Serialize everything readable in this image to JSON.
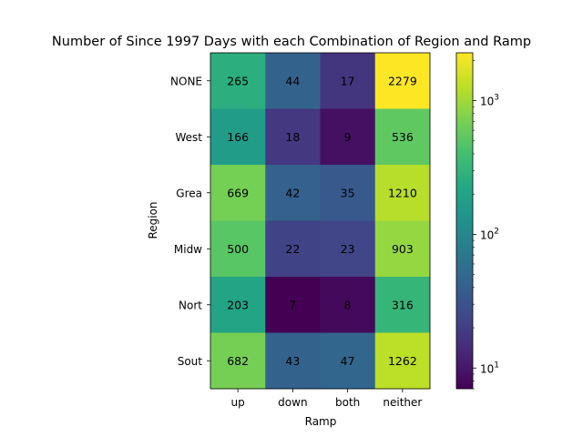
{
  "chart_data": {
    "type": "heatmap",
    "title": "Number of Since 1997 Days with each Combination of Region and Ramp",
    "xlabel": "Ramp",
    "ylabel": "Region",
    "x_categories": [
      "up",
      "down",
      "both",
      "neither"
    ],
    "y_categories": [
      "NONE",
      "West",
      "Grea",
      "Midw",
      "Nort",
      "Sout"
    ],
    "values": [
      [
        265,
        44,
        17,
        2279
      ],
      [
        166,
        18,
        9,
        536
      ],
      [
        669,
        42,
        35,
        1210
      ],
      [
        500,
        22,
        23,
        903
      ],
      [
        203,
        7,
        8,
        316
      ],
      [
        682,
        43,
        47,
        1262
      ]
    ],
    "colorbar": {
      "scale": "log",
      "colormap": "viridis",
      "range": [
        7,
        2279
      ],
      "ticks": [
        10,
        100,
        1000
      ],
      "tick_labels": [
        [
          "10",
          "1"
        ],
        [
          "10",
          "2"
        ],
        [
          "10",
          "3"
        ]
      ]
    },
    "grid": false
  }
}
